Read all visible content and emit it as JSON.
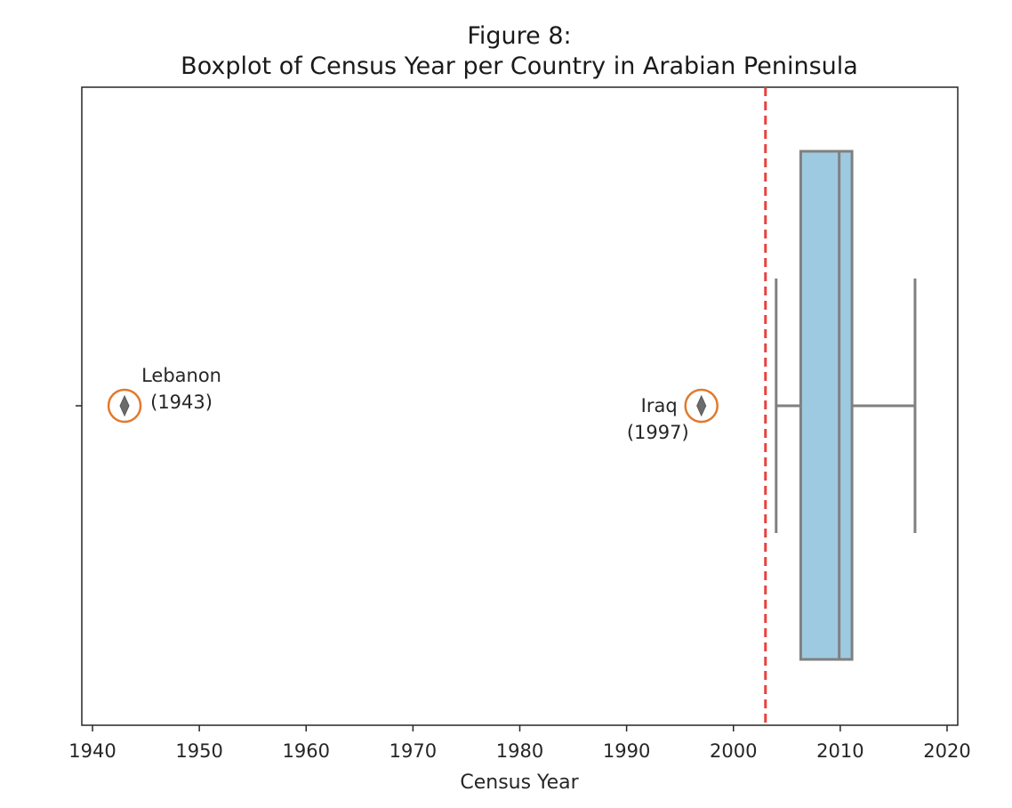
{
  "chart_data": {
    "type": "boxplot",
    "title": "Figure 8:",
    "subtitle": "Boxplot of Census Year per Country in Arabian Peninsula",
    "xlabel": "Census Year",
    "ylabel": "",
    "xlim": [
      1939,
      2021
    ],
    "x_ticks": [
      1940,
      1950,
      1960,
      1970,
      1980,
      1990,
      2000,
      2010,
      2020
    ],
    "grid": false,
    "box": {
      "whisker_low": 2004,
      "q1": 2006.3,
      "median": 2009.9,
      "q3": 2011.1,
      "whisker_high": 2017,
      "fill_color": "#9ecae1",
      "edge_color": "#808080"
    },
    "outliers": [
      {
        "value": 1943,
        "label_name": "Lebanon",
        "label_year": "(1943)"
      },
      {
        "value": 1997,
        "label_name": "Iraq",
        "label_year": "(1997)"
      }
    ],
    "reference_line": {
      "value": 2003,
      "color": "#e8413c",
      "style": "dashed"
    },
    "outlier_highlight_color": "#e07a2e"
  }
}
